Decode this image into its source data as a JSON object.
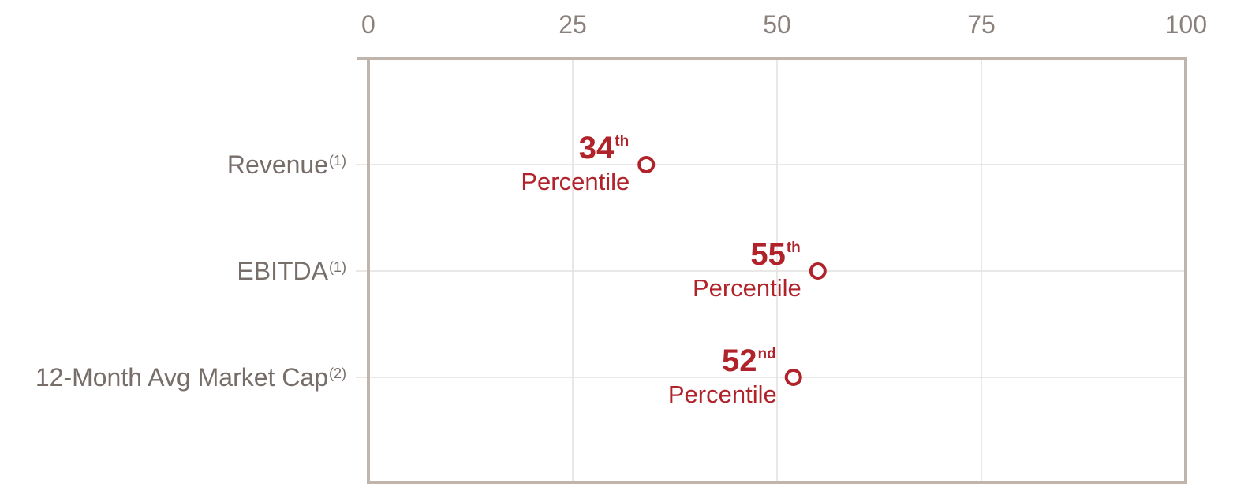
{
  "chart_data": {
    "type": "scatter",
    "xlim": [
      0,
      100
    ],
    "x_ticks": [
      "0",
      "25",
      "50",
      "75",
      "100"
    ],
    "x_tick_values": [
      0,
      25,
      50,
      75,
      100
    ],
    "grid": true,
    "marker_color": "#b0232a",
    "frame_color": "#bfb5ad",
    "points": [
      {
        "category": "Revenue",
        "footnote": "(1)",
        "value": 34,
        "rank": "34",
        "suffix": "th",
        "word": "Percentile"
      },
      {
        "category": "EBITDA",
        "footnote": "(1)",
        "value": 55,
        "rank": "55",
        "suffix": "th",
        "word": "Percentile"
      },
      {
        "category": "12-Month Avg Market Cap",
        "footnote": "(2)",
        "value": 52,
        "rank": "52",
        "suffix": "nd",
        "word": "Percentile"
      }
    ]
  }
}
